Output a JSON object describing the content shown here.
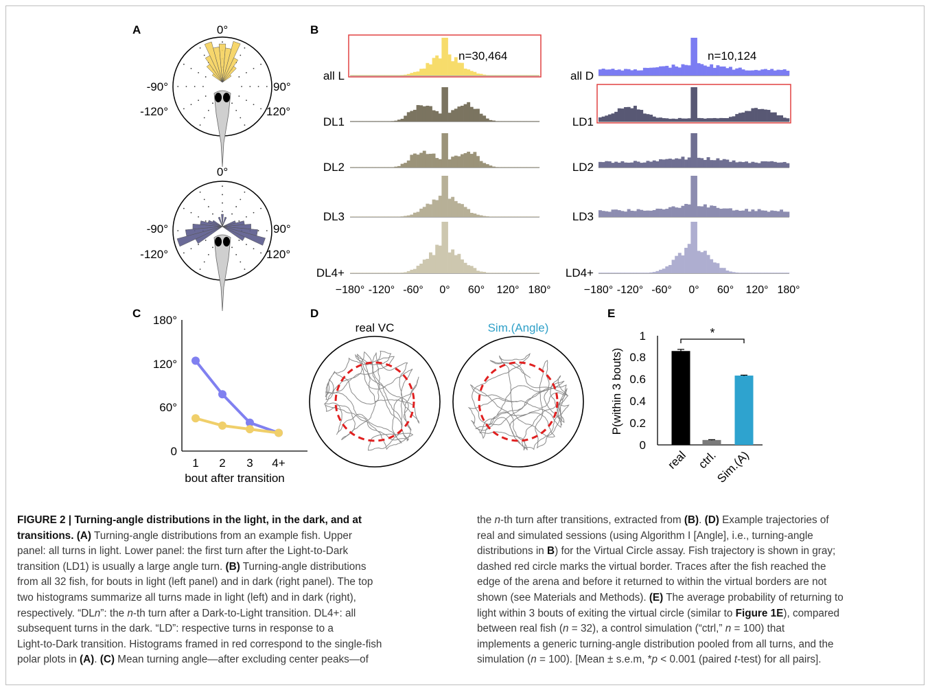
{
  "panels": {
    "a": {
      "letter": "A",
      "top": {
        "label_0": "0°",
        "label_m90": "-90°",
        "label_90": "90°",
        "label_m120": "-120°",
        "label_120": "120°"
      },
      "bottom": {
        "label_0": "0°",
        "label_m90": "-90°",
        "label_90": "90°",
        "label_m120": "-120°",
        "label_120": "120°"
      },
      "colors": {
        "light": "#f5d15c",
        "dark": "#5a5a8c",
        "fish": "#c8c8c8"
      }
    },
    "b": {
      "letter": "B",
      "left_rows": [
        "all L",
        "DL1",
        "DL2",
        "DL3",
        "DL4+"
      ],
      "right_rows": [
        "all D",
        "LD1",
        "LD2",
        "LD3",
        "LD4+"
      ],
      "left_count": "n=30,464",
      "right_count": "n=10,124",
      "ticks": [
        "−180°",
        "-120°",
        "-60°",
        "0°",
        "60°",
        "120°",
        "180°"
      ],
      "colors": {
        "left": [
          "#f7dc6b",
          "#7b7460",
          "#9b9379",
          "#b7b097",
          "#cdc7af"
        ],
        "right": [
          "#7b7cf2",
          "#585874",
          "#6f6f92",
          "#8c8cb0",
          "#aeaed0"
        ],
        "frame": "#e04040"
      }
    },
    "c": {
      "letter": "C",
      "xlabel": "bout after transition",
      "yticks": [
        "180°",
        "120°",
        "60°",
        "0"
      ],
      "xticks": [
        "1",
        "2",
        "3",
        "4+"
      ]
    },
    "d": {
      "letter": "D",
      "left_title": "real VC",
      "right_title": "Sim.(Angle)",
      "title_color_right": "#2fa0c8"
    },
    "e": {
      "letter": "E",
      "ylabel": "P(within 3 bouts)",
      "yticks": [
        "1",
        "0.8",
        "0.6",
        "0.4",
        "0.2",
        "0"
      ],
      "xticks": [
        "real",
        "ctrl.",
        "Sim.(A)"
      ],
      "sig": "*"
    }
  },
  "chart_data": [
    {
      "type": "line",
      "panel": "C",
      "title": "",
      "xlabel": "bout after transition",
      "ylabel": "",
      "categories": [
        "1",
        "2",
        "3",
        "4+"
      ],
      "ylim": [
        0,
        180
      ],
      "series": [
        {
          "color": "#8080f0",
          "values": [
            124,
            78,
            39,
            25
          ]
        },
        {
          "color": "#f0cf6a",
          "values": [
            45,
            35,
            30,
            25
          ]
        }
      ]
    },
    {
      "type": "bar",
      "panel": "E",
      "title": "",
      "xlabel": "",
      "ylabel": "P(within 3 bouts)",
      "categories": [
        "real",
        "ctrl.",
        "Sim.(A)"
      ],
      "values": [
        0.86,
        0.045,
        0.635
      ],
      "errors": [
        0.015,
        0.003,
        0.004
      ],
      "colors": [
        "#000000",
        "#7a7a7a",
        "#2ea3cf"
      ],
      "ylim": [
        0,
        1
      ],
      "significance": "*"
    }
  ],
  "caption": {
    "left_lines": [
      [
        {
          "t": "FIGURE 2 | Turning-angle distributions in the light, in the dark, and at",
          "s": "title"
        }
      ],
      [
        {
          "t": "transitions. ",
          "s": "title"
        },
        {
          "t": "(A)",
          "s": "bold"
        },
        {
          "t": " Turning-angle distributions from an example fish. Upper",
          "s": ""
        }
      ],
      [
        {
          "t": "panel: all turns in light. Lower panel: the first turn after the Light-to-Dark",
          "s": ""
        }
      ],
      [
        {
          "t": "transition (LD1) is usually a large angle turn. ",
          "s": ""
        },
        {
          "t": "(B)",
          "s": "bold"
        },
        {
          "t": " Turning-angle distributions",
          "s": ""
        }
      ],
      [
        {
          "t": "from all 32 fish, for bouts in light (left panel) and in dark (right panel). The top",
          "s": ""
        }
      ],
      [
        {
          "t": "two histograms summarize all turns made in light (left) and in dark (right),",
          "s": ""
        }
      ],
      [
        {
          "t": "respectively. “DL",
          "s": ""
        },
        {
          "t": "n",
          "s": "ital"
        },
        {
          "t": "”: the ",
          "s": ""
        },
        {
          "t": "n",
          "s": "ital"
        },
        {
          "t": "-th turn after a Dark-to-Light transition. DL4+: all",
          "s": ""
        }
      ],
      [
        {
          "t": "subsequent turns in the dark. “LD”: respective turns in response to a",
          "s": ""
        }
      ],
      [
        {
          "t": "Light-to-Dark transition. Histograms framed in red correspond to the single-fish",
          "s": ""
        }
      ],
      [
        {
          "t": "polar plots in ",
          "s": ""
        },
        {
          "t": "(A)",
          "s": "bold"
        },
        {
          "t": ". ",
          "s": ""
        },
        {
          "t": "(C)",
          "s": "bold"
        },
        {
          "t": " Mean turning angle—after excluding center peaks—of",
          "s": ""
        }
      ]
    ],
    "right_lines": [
      [
        {
          "t": "the ",
          "s": ""
        },
        {
          "t": "n",
          "s": "ital"
        },
        {
          "t": "-th turn after transitions, extracted from ",
          "s": ""
        },
        {
          "t": "(B)",
          "s": "bold"
        },
        {
          "t": ". ",
          "s": ""
        },
        {
          "t": "(D)",
          "s": "bold"
        },
        {
          "t": " Example trajectories of",
          "s": ""
        }
      ],
      [
        {
          "t": "real and simulated sessions (using Algorithm I [Angle], i.e., turning-angle",
          "s": ""
        }
      ],
      [
        {
          "t": "distributions in ",
          "s": ""
        },
        {
          "t": "B",
          "s": "bold"
        },
        {
          "t": ") for the Virtual Circle assay. Fish trajectory is shown in gray;",
          "s": ""
        }
      ],
      [
        {
          "t": "dashed red circle marks the virtual border. Traces after the fish reached the",
          "s": ""
        }
      ],
      [
        {
          "t": "edge of the arena and before it returned to within the virtual borders are not",
          "s": ""
        }
      ],
      [
        {
          "t": "shown (see Materials and Methods). ",
          "s": ""
        },
        {
          "t": "(E)",
          "s": "bold"
        },
        {
          "t": " The average probability of returning to",
          "s": ""
        }
      ],
      [
        {
          "t": "light within 3 bouts of exiting the virtual circle (similar to ",
          "s": ""
        },
        {
          "t": "Figure 1E",
          "s": "bold"
        },
        {
          "t": "), compared",
          "s": ""
        }
      ],
      [
        {
          "t": "between real fish (",
          "s": ""
        },
        {
          "t": "n",
          "s": "ital"
        },
        {
          "t": " = 32), a control simulation (“ctrl,” ",
          "s": ""
        },
        {
          "t": "n",
          "s": "ital"
        },
        {
          "t": " = 100) that",
          "s": ""
        }
      ],
      [
        {
          "t": "implements a generic turning-angle distribution pooled from all turns, and the",
          "s": ""
        }
      ],
      [
        {
          "t": "simulation (",
          "s": ""
        },
        {
          "t": "n",
          "s": "ital"
        },
        {
          "t": " = 100). [Mean ± s.e.m, *",
          "s": ""
        },
        {
          "t": "p",
          "s": "ital"
        },
        {
          "t": " < 0.001 (paired ",
          "s": ""
        },
        {
          "t": "t",
          "s": "ital"
        },
        {
          "t": "-test) for all pairs].",
          "s": ""
        }
      ]
    ]
  }
}
